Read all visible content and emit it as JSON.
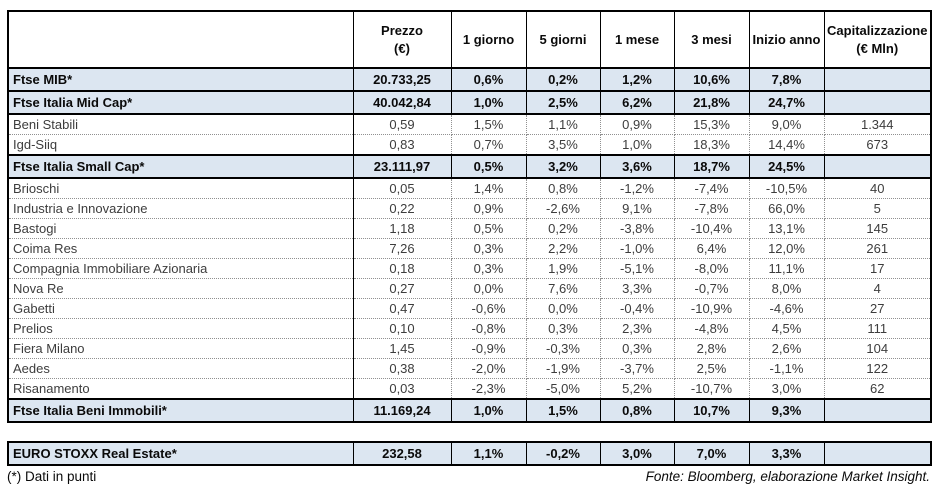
{
  "table": {
    "header": [
      {
        "line1": "Prezzo",
        "line2": "(€)"
      },
      {
        "line1": "1 giorno",
        "line2": ""
      },
      {
        "line1": "5 giorni",
        "line2": ""
      },
      {
        "line1": "1 mese",
        "line2": ""
      },
      {
        "line1": "3 mesi",
        "line2": ""
      },
      {
        "line1": "Inizio anno",
        "line2": ""
      },
      {
        "line1": "Capitalizzazione",
        "line2": "(€ Mln)"
      }
    ],
    "rows": [
      {
        "name": "Ftse MIB*",
        "type": "index",
        "values": [
          "20.733,25",
          "0,6%",
          "0,2%",
          "1,2%",
          "10,6%",
          "7,8%",
          ""
        ]
      },
      {
        "name": "Ftse Italia Mid Cap*",
        "type": "index",
        "values": [
          "40.042,84",
          "1,0%",
          "2,5%",
          "6,2%",
          "21,8%",
          "24,7%",
          ""
        ]
      },
      {
        "name": "Beni Stabili",
        "type": "stock",
        "values": [
          "0,59",
          "1,5%",
          "1,1%",
          "0,9%",
          "15,3%",
          "9,0%",
          "1.344"
        ]
      },
      {
        "name": "Igd-Siiq",
        "type": "stock",
        "values": [
          "0,83",
          "0,7%",
          "3,5%",
          "1,0%",
          "18,3%",
          "14,4%",
          "673"
        ]
      },
      {
        "name": "Ftse Italia Small Cap*",
        "type": "index",
        "values": [
          "23.111,97",
          "0,5%",
          "3,2%",
          "3,6%",
          "18,7%",
          "24,5%",
          ""
        ]
      },
      {
        "name": "Brioschi",
        "type": "stock",
        "values": [
          "0,05",
          "1,4%",
          "0,8%",
          "-1,2%",
          "-7,4%",
          "-10,5%",
          "40"
        ]
      },
      {
        "name": "Industria e Innovazione",
        "type": "stock",
        "values": [
          "0,22",
          "0,9%",
          "-2,6%",
          "9,1%",
          "-7,8%",
          "66,0%",
          "5"
        ]
      },
      {
        "name": "Bastogi",
        "type": "stock",
        "values": [
          "1,18",
          "0,5%",
          "0,2%",
          "-3,8%",
          "-10,4%",
          "13,1%",
          "145"
        ]
      },
      {
        "name": "Coima Res",
        "type": "stock",
        "values": [
          "7,26",
          "0,3%",
          "2,2%",
          "-1,0%",
          "6,4%",
          "12,0%",
          "261"
        ]
      },
      {
        "name": "Compagnia Immobiliare Azionaria",
        "type": "stock",
        "values": [
          "0,18",
          "0,3%",
          "1,9%",
          "-5,1%",
          "-8,0%",
          "11,1%",
          "17"
        ]
      },
      {
        "name": "Nova Re",
        "type": "stock",
        "values": [
          "0,27",
          "0,0%",
          "7,6%",
          "3,3%",
          "-0,7%",
          "8,0%",
          "4"
        ]
      },
      {
        "name": "Gabetti",
        "type": "stock",
        "values": [
          "0,47",
          "-0,6%",
          "0,0%",
          "-0,4%",
          "-10,9%",
          "-4,6%",
          "27"
        ]
      },
      {
        "name": "Prelios",
        "type": "stock",
        "values": [
          "0,10",
          "-0,8%",
          "0,3%",
          "2,3%",
          "-4,8%",
          "4,5%",
          "111"
        ]
      },
      {
        "name": "Fiera Milano",
        "type": "stock",
        "values": [
          "1,45",
          "-0,9%",
          "-0,3%",
          "0,3%",
          "2,8%",
          "2,6%",
          "104"
        ]
      },
      {
        "name": "Aedes",
        "type": "stock",
        "values": [
          "0,38",
          "-2,0%",
          "-1,9%",
          "-3,7%",
          "2,5%",
          "-1,1%",
          "122"
        ]
      },
      {
        "name": "Risanamento",
        "type": "stock",
        "values": [
          "0,03",
          "-2,3%",
          "-5,0%",
          "5,2%",
          "-10,7%",
          "3,0%",
          "62"
        ]
      },
      {
        "name": "Ftse Italia Beni Immobili*",
        "type": "index",
        "values": [
          "11.169,24",
          "1,0%",
          "1,5%",
          "0,8%",
          "10,7%",
          "9,3%",
          ""
        ]
      }
    ]
  },
  "euro_table": {
    "rows": [
      {
        "name": "EURO STOXX Real Estate*",
        "type": "index",
        "values": [
          "232,58",
          "1,1%",
          "-0,2%",
          "3,0%",
          "7,0%",
          "3,3%",
          ""
        ]
      }
    ]
  },
  "footer": {
    "left": "(*) Dati in punti",
    "right": "Fonte: Bloomberg, elaborazione Market Insight."
  },
  "colors": {
    "index_row_bg": "#dce6f1",
    "border": "#000000",
    "stock_text": "#3d3d3d"
  }
}
